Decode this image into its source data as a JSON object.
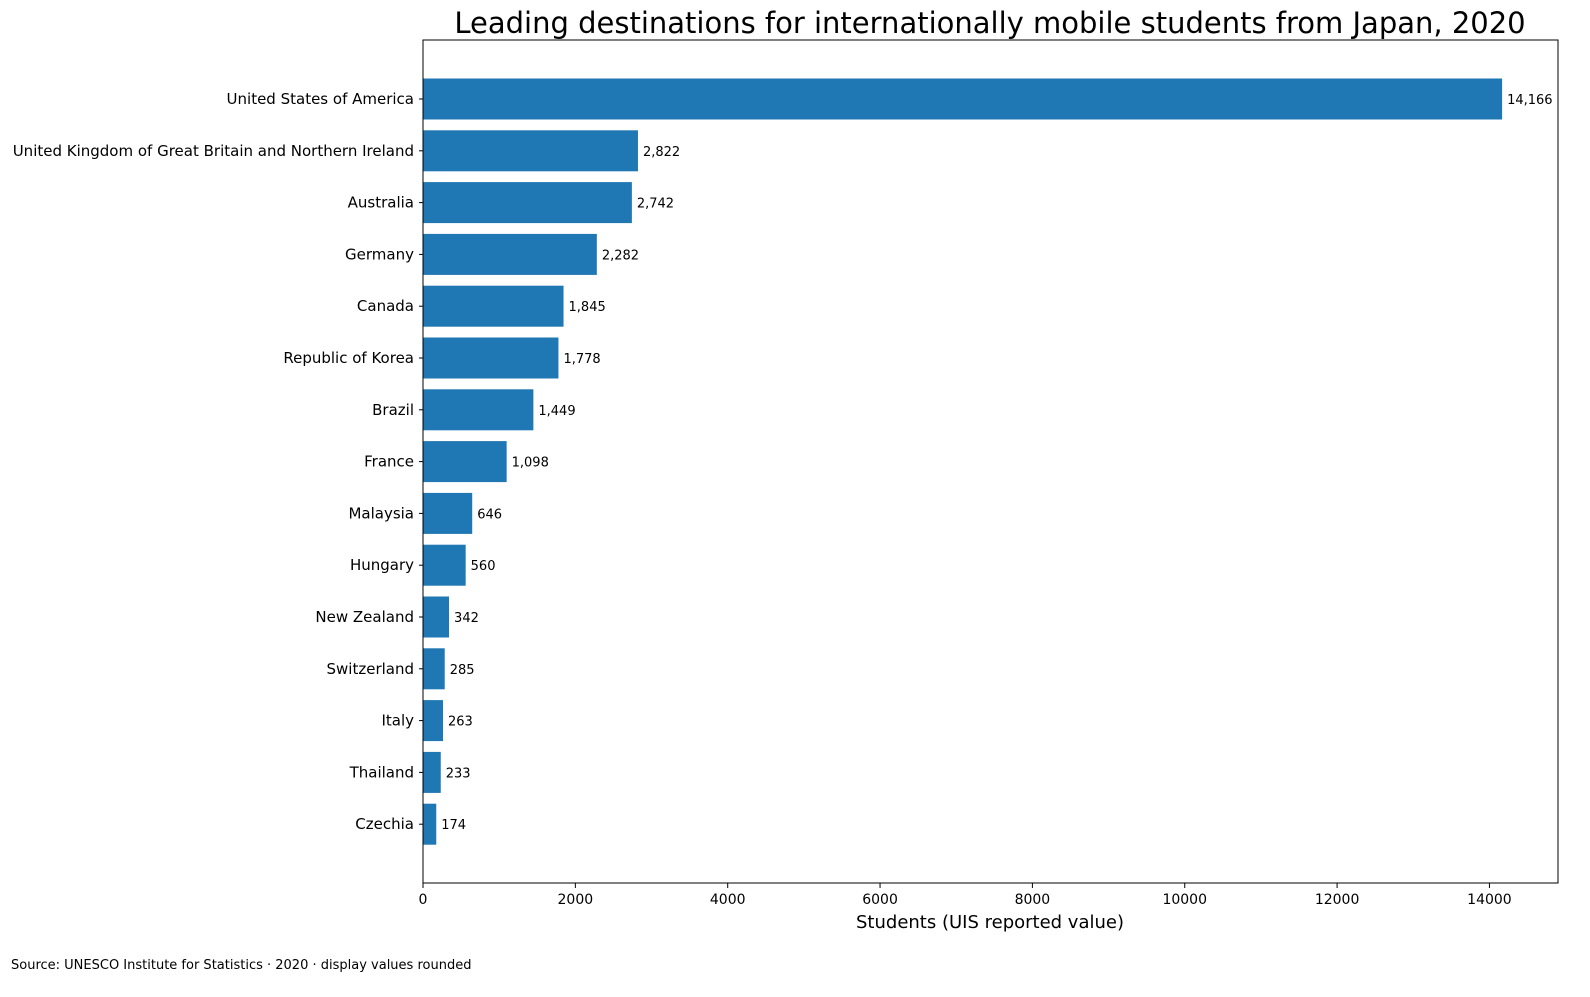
{
  "chart_data": {
    "type": "bar",
    "orientation": "horizontal",
    "title": "Leading destinations for internationally mobile students from Japan, 2020",
    "xlabel": "Students (UIS reported value)",
    "ylabel": "",
    "xlim": [
      0,
      14900
    ],
    "x_ticks": [
      0,
      2000,
      4000,
      6000,
      8000,
      10000,
      12000,
      14000
    ],
    "x_tick_labels": [
      "0",
      "2000",
      "4000",
      "6000",
      "8000",
      "10000",
      "12000",
      "14000"
    ],
    "categories": [
      "United States of America",
      "United Kingdom of Great Britain and Northern Ireland",
      "Australia",
      "Germany",
      "Canada",
      "Republic of Korea",
      "Brazil",
      "France",
      "Malaysia",
      "Hungary",
      "New Zealand",
      "Switzerland",
      "Italy",
      "Thailand",
      "Czechia"
    ],
    "values": [
      14166,
      2822,
      2742,
      2282,
      1845,
      1778,
      1449,
      1098,
      646,
      560,
      342,
      285,
      263,
      233,
      174
    ],
    "value_labels": [
      "14,166",
      "2,822",
      "2,742",
      "2,282",
      "1,845",
      "1,778",
      "1,449",
      "1,098",
      "646",
      "560",
      "342",
      "285",
      "263",
      "233",
      "174"
    ],
    "bar_color": "#1f77b4",
    "grid": false,
    "legend": "none"
  },
  "footer": {
    "source_note": "Source: UNESCO Institute for Statistics · 2020 · display values rounded"
  }
}
